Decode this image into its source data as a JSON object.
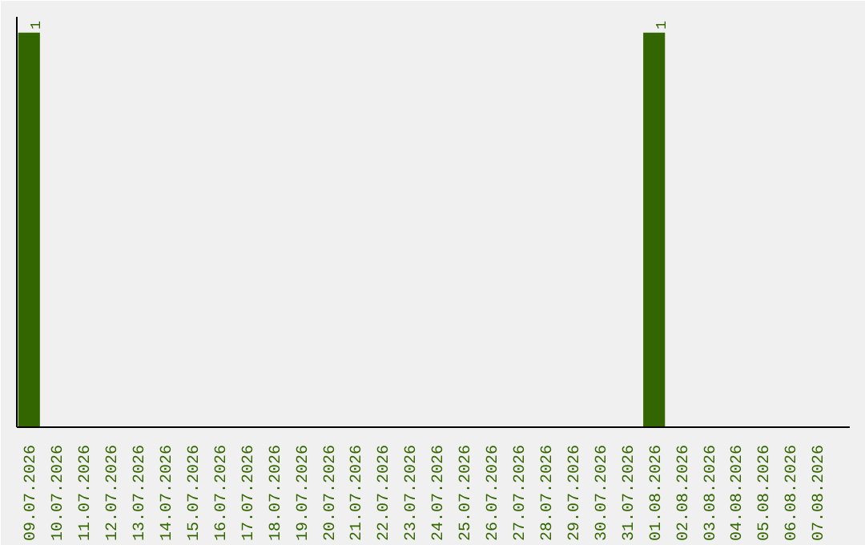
{
  "chart_data": {
    "type": "bar",
    "categories": [
      "09.07.2026",
      "10.07.2026",
      "11.07.2026",
      "12.07.2026",
      "13.07.2026",
      "14.07.2026",
      "15.07.2026",
      "16.07.2026",
      "17.07.2026",
      "18.07.2026",
      "19.07.2026",
      "20.07.2026",
      "21.07.2026",
      "22.07.2026",
      "23.07.2026",
      "24.07.2026",
      "25.07.2026",
      "26.07.2026",
      "27.07.2026",
      "28.07.2026",
      "29.07.2026",
      "30.07.2026",
      "31.07.2026",
      "01.08.2026",
      "02.08.2026",
      "03.08.2026",
      "04.08.2026",
      "05.08.2026",
      "06.08.2026",
      "07.08.2026"
    ],
    "values": [
      1,
      0,
      0,
      0,
      0,
      0,
      0,
      0,
      0,
      0,
      0,
      0,
      0,
      0,
      0,
      0,
      0,
      0,
      0,
      0,
      0,
      0,
      0,
      1,
      0,
      0,
      0,
      0,
      0,
      0
    ],
    "value_labels": [
      "1",
      null,
      null,
      null,
      null,
      null,
      null,
      null,
      null,
      null,
      null,
      null,
      null,
      null,
      null,
      null,
      null,
      null,
      null,
      null,
      null,
      null,
      null,
      "1",
      null,
      null,
      null,
      null,
      null,
      null
    ],
    "color": "#336600",
    "grid": false,
    "tick_labels": "x"
  }
}
